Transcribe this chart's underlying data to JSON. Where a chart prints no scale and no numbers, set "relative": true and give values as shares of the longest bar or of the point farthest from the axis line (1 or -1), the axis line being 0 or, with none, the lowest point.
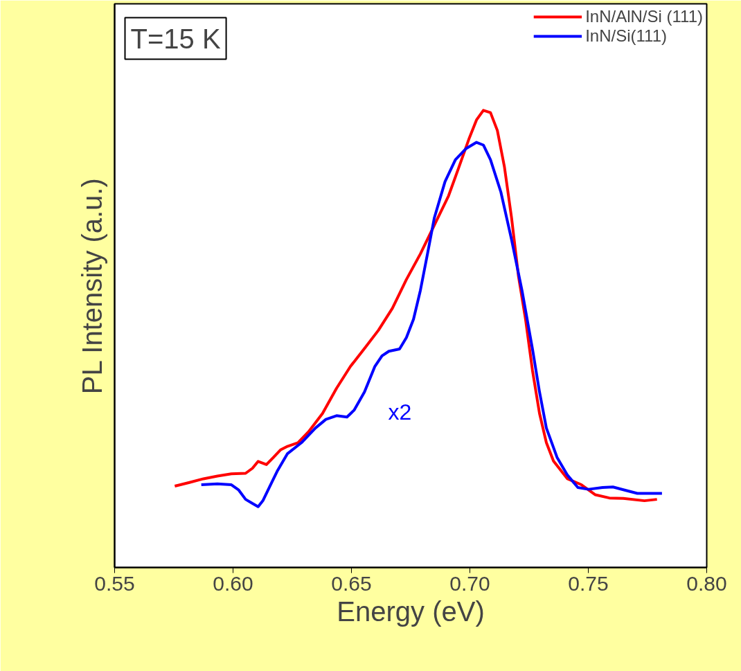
{
  "chart_data": {
    "type": "line",
    "relative": true,
    "xlabel": "Energy (eV)",
    "ylabel": "PL Intensity (a.u.)",
    "xlim": [
      0.55,
      0.8
    ],
    "xticks": [
      0.55,
      {
        "value": 0.6,
        "label": "0.60"
      },
      0.65,
      {
        "value": 0.7,
        "label": "0.70"
      },
      0.75,
      {
        "value": 0.8,
        "label": "0.80"
      }
    ],
    "legend": "top right",
    "grid": false,
    "line_style": "solid",
    "annotations": [
      "T=15 K",
      "x2"
    ],
    "series": [
      {
        "name": "InN/AlN/Si (111)",
        "color": "#ff0000",
        "x": [
          0.5754,
          0.5816,
          0.5875,
          0.5934,
          0.5993,
          0.6053,
          0.6082,
          0.6106,
          0.6141,
          0.6171,
          0.62,
          0.623,
          0.6274,
          0.6319,
          0.6378,
          0.6437,
          0.6496,
          0.6555,
          0.6614,
          0.6673,
          0.6732,
          0.6791,
          0.685,
          0.691,
          0.6954,
          0.6998,
          0.7028,
          0.7057,
          0.7087,
          0.7116,
          0.7146,
          0.7176,
          0.7205,
          0.7235,
          0.7264,
          0.7294,
          0.7323,
          0.7353,
          0.7412,
          0.7471,
          0.753,
          0.7589,
          0.7648,
          0.7737,
          0.779
        ],
        "values": [
          0.178,
          0.186,
          0.194,
          0.2,
          0.205,
          0.206,
          0.217,
          0.232,
          0.225,
          0.241,
          0.257,
          0.265,
          0.273,
          0.297,
          0.337,
          0.392,
          0.44,
          0.479,
          0.519,
          0.567,
          0.63,
          0.686,
          0.749,
          0.813,
          0.876,
          0.94,
          0.979,
          1,
          0.995,
          0.956,
          0.876,
          0.765,
          0.638,
          0.543,
          0.432,
          0.337,
          0.273,
          0.233,
          0.194,
          0.181,
          0.159,
          0.152,
          0.151,
          0.146,
          0.149
        ]
      },
      {
        "name": "InN/Si(111)",
        "color": "#0000ff",
        "x": [
          0.5866,
          0.5934,
          0.5993,
          0.6023,
          0.6053,
          0.6082,
          0.6106,
          0.6126,
          0.6156,
          0.6186,
          0.623,
          0.6289,
          0.6348,
          0.6392,
          0.6437,
          0.6481,
          0.6511,
          0.6555,
          0.6599,
          0.6629,
          0.6658,
          0.6703,
          0.6732,
          0.6762,
          0.6791,
          0.6821,
          0.685,
          0.6895,
          0.6939,
          0.6983,
          0.7028,
          0.7057,
          0.7087,
          0.7131,
          0.7176,
          0.722,
          0.7264,
          0.7294,
          0.7323,
          0.7368,
          0.7412,
          0.7456,
          0.7501,
          0.756,
          0.7604,
          0.7648,
          0.7707,
          0.7767,
          0.7811
        ],
        "values": [
          0.181,
          0.183,
          0.181,
          0.17,
          0.149,
          0.14,
          0.133,
          0.146,
          0.178,
          0.21,
          0.249,
          0.273,
          0.305,
          0.324,
          0.332,
          0.329,
          0.344,
          0.384,
          0.44,
          0.463,
          0.473,
          0.478,
          0.503,
          0.543,
          0.606,
          0.686,
          0.765,
          0.844,
          0.892,
          0.916,
          0.93,
          0.924,
          0.892,
          0.821,
          0.717,
          0.606,
          0.479,
          0.384,
          0.305,
          0.241,
          0.202,
          0.175,
          0.171,
          0.175,
          0.176,
          0.17,
          0.162,
          0.162,
          0.162
        ]
      }
    ]
  }
}
